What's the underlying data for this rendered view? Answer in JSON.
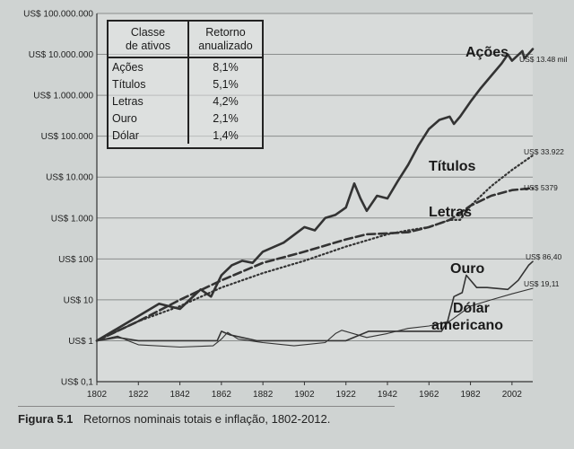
{
  "table": {
    "headers": [
      "Classe\nde ativos",
      "Retorno\nanualizado"
    ],
    "rows": [
      [
        "Ações",
        "8,1%"
      ],
      [
        "Títulos",
        "5,1%"
      ],
      [
        "Letras",
        "4,2%"
      ],
      [
        "Ouro",
        "2,1%"
      ],
      [
        "Dólar",
        "1,4%"
      ]
    ]
  },
  "caption": {
    "figure": "Figura 5.1",
    "text": "Retornos nominais totais e inflação, 1802-2012."
  },
  "chart_data": {
    "type": "line",
    "title": "",
    "xlabel": "",
    "ylabel": "",
    "x_ticks": [
      "1802",
      "1822",
      "1842",
      "1862",
      "1882",
      "1902",
      "1922",
      "1942",
      "1962",
      "1982",
      "2002"
    ],
    "y_ticks": [
      "US$ 0,1",
      "US$ 1",
      "US$ 10",
      "US$ 100",
      "US$ 1.000",
      "US$ 10.000",
      "US$ 100.000",
      "US$ 1.000.000",
      "US$ 10.000.000",
      "US$ 100.000.000"
    ],
    "yscale": "log",
    "xlim": [
      1802,
      2012
    ],
    "ylim": [
      0.1,
      100000000
    ],
    "grid": "horizontal",
    "series": [
      {
        "name": "Ações",
        "end_label": "US$ 13.48 mil",
        "style": "solid-thick",
        "color": "#333333",
        "points": [
          [
            1802,
            1
          ],
          [
            1812,
            2
          ],
          [
            1822,
            4
          ],
          [
            1832,
            8
          ],
          [
            1842,
            6
          ],
          [
            1852,
            18
          ],
          [
            1857,
            12
          ],
          [
            1862,
            40
          ],
          [
            1867,
            70
          ],
          [
            1872,
            90
          ],
          [
            1877,
            80
          ],
          [
            1882,
            150
          ],
          [
            1892,
            250
          ],
          [
            1902,
            600
          ],
          [
            1907,
            500
          ],
          [
            1912,
            1000
          ],
          [
            1917,
            1200
          ],
          [
            1922,
            1800
          ],
          [
            1926,
            7000
          ],
          [
            1929,
            3000
          ],
          [
            1932,
            1500
          ],
          [
            1937,
            3500
          ],
          [
            1942,
            3000
          ],
          [
            1947,
            8000
          ],
          [
            1952,
            20000
          ],
          [
            1957,
            60000
          ],
          [
            1962,
            150000
          ],
          [
            1967,
            250000
          ],
          [
            1972,
            300000
          ],
          [
            1974,
            200000
          ],
          [
            1977,
            300000
          ],
          [
            1982,
            700000
          ],
          [
            1987,
            1500000
          ],
          [
            1992,
            3000000
          ],
          [
            1997,
            6000000
          ],
          [
            2000,
            10000000
          ],
          [
            2002,
            7000000
          ],
          [
            2007,
            12000000
          ],
          [
            2008,
            8000000
          ],
          [
            2012,
            13480000
          ]
        ]
      },
      {
        "name": "Títulos",
        "end_label": "US$ 33.922",
        "style": "dotted",
        "color": "#333333",
        "points": [
          [
            1802,
            1
          ],
          [
            1822,
            3
          ],
          [
            1842,
            7
          ],
          [
            1862,
            20
          ],
          [
            1882,
            45
          ],
          [
            1902,
            90
          ],
          [
            1922,
            200
          ],
          [
            1942,
            400
          ],
          [
            1952,
            500
          ],
          [
            1962,
            600
          ],
          [
            1972,
            900
          ],
          [
            1977,
            900
          ],
          [
            1982,
            2000
          ],
          [
            1992,
            6000
          ],
          [
            2002,
            15000
          ],
          [
            2012,
            33922
          ]
        ]
      },
      {
        "name": "Letras",
        "end_label": "US$ 5379",
        "style": "dashed",
        "color": "#333333",
        "points": [
          [
            1802,
            1
          ],
          [
            1822,
            3
          ],
          [
            1842,
            10
          ],
          [
            1862,
            30
          ],
          [
            1882,
            80
          ],
          [
            1902,
            150
          ],
          [
            1922,
            300
          ],
          [
            1932,
            400
          ],
          [
            1942,
            420
          ],
          [
            1952,
            450
          ],
          [
            1962,
            600
          ],
          [
            1972,
            900
          ],
          [
            1982,
            2000
          ],
          [
            1992,
            3500
          ],
          [
            2002,
            4800
          ],
          [
            2012,
            5379
          ]
        ]
      },
      {
        "name": "Ouro",
        "end_label": "US$ 86,40",
        "style": "solid",
        "color": "#333333",
        "points": [
          [
            1802,
            1
          ],
          [
            1812,
            1.2
          ],
          [
            1822,
            1
          ],
          [
            1842,
            1
          ],
          [
            1860,
            1
          ],
          [
            1862,
            1.7
          ],
          [
            1866,
            1.4
          ],
          [
            1879,
            1
          ],
          [
            1922,
            1
          ],
          [
            1933,
            1.7
          ],
          [
            1968,
            1.7
          ],
          [
            1971,
            3
          ],
          [
            1974,
            12
          ],
          [
            1978,
            15
          ],
          [
            1980,
            40
          ],
          [
            1985,
            20
          ],
          [
            1990,
            20
          ],
          [
            2000,
            18
          ],
          [
            2005,
            30
          ],
          [
            2010,
            70
          ],
          [
            2012,
            86.4
          ]
        ]
      },
      {
        "name": "Dólar americano",
        "end_label": "US$ 19,11",
        "style": "solid-thin",
        "color": "#333333",
        "points": [
          [
            1802,
            1
          ],
          [
            1812,
            1.3
          ],
          [
            1817,
            1
          ],
          [
            1822,
            0.8
          ],
          [
            1842,
            0.7
          ],
          [
            1858,
            0.75
          ],
          [
            1862,
            1.1
          ],
          [
            1865,
            1.6
          ],
          [
            1870,
            1.1
          ],
          [
            1882,
            0.9
          ],
          [
            1897,
            0.75
          ],
          [
            1912,
            0.9
          ],
          [
            1917,
            1.5
          ],
          [
            1920,
            1.8
          ],
          [
            1932,
            1.2
          ],
          [
            1942,
            1.5
          ],
          [
            1952,
            2
          ],
          [
            1962,
            2.3
          ],
          [
            1972,
            3
          ],
          [
            1982,
            7
          ],
          [
            1992,
            10
          ],
          [
            2002,
            14
          ],
          [
            2012,
            19.11
          ]
        ]
      }
    ]
  }
}
